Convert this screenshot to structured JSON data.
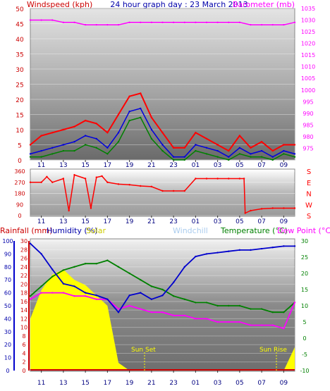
{
  "header": {
    "title": "24 hour graph day : 23 March 2013",
    "left_label": "Windspeed (kph)",
    "right_label": "Barometer (mb)"
  },
  "colors": {
    "wind": "#ff0000",
    "gust": "#ff0000",
    "avg": "#0000dd",
    "min": "#008000",
    "baro": "#ff00ff",
    "dir": "#ff0000",
    "dir_right": "#ff0000",
    "rain": "#cc0000",
    "humidity": "#0000cc",
    "humidity2": "#0000aa",
    "solar": "#ffff00",
    "windchill": "#aaccee",
    "temp": "#008000",
    "dew": "#ff00ff",
    "sun_text": "#ffff00"
  },
  "time_axis": {
    "labels": [
      "11",
      "13",
      "15",
      "17",
      "19",
      "21",
      "23",
      "01",
      "03",
      "05",
      "07",
      "09"
    ]
  },
  "chart_data": [
    {
      "type": "line",
      "id": "wind-barometer",
      "title": "24 hour graph day : 23 March 2013",
      "ylabel": "Windspeed (kph)",
      "y2label": "Barometer (mb)",
      "ylim": [
        0,
        50
      ],
      "y2lim": [
        970,
        1035
      ],
      "yticks": [
        "0",
        "5",
        "10",
        "15",
        "20",
        "25",
        "30",
        "35",
        "40",
        "45",
        "50"
      ],
      "y2ticks": [
        "975",
        "980",
        "985",
        "990",
        "995",
        "1000",
        "1005",
        "1010",
        "1015",
        "1020",
        "1025",
        "1030",
        "1035"
      ],
      "x": [
        10,
        11,
        12,
        13,
        14,
        15,
        16,
        17,
        18,
        19,
        20,
        21,
        22,
        23,
        24,
        25,
        26,
        27,
        28,
        29,
        30,
        31,
        32,
        33,
        34
      ],
      "series": [
        {
          "role": "gust",
          "values": [
            5,
            8,
            9,
            10,
            11,
            13,
            12,
            9,
            15,
            21,
            22,
            14,
            9,
            4,
            4,
            9,
            7,
            5,
            3,
            8,
            4,
            6,
            3,
            5,
            5
          ]
        },
        {
          "role": "avg",
          "values": [
            2,
            3,
            4,
            5,
            6,
            8,
            7,
            4,
            9,
            16,
            17,
            10,
            5,
            1,
            1,
            5,
            4,
            3,
            1,
            4,
            2,
            3,
            1,
            3,
            2
          ]
        },
        {
          "role": "min",
          "values": [
            1,
            1,
            2,
            3,
            3,
            5,
            4,
            2,
            6,
            13,
            14,
            7,
            3,
            0,
            0,
            3,
            2,
            1,
            0,
            2,
            1,
            1,
            0,
            2,
            1
          ]
        },
        {
          "role": "barometer",
          "values": [
            1030,
            1030,
            1030,
            1029,
            1029,
            1028,
            1028,
            1028,
            1028,
            1029,
            1029,
            1029,
            1029,
            1029,
            1029,
            1029,
            1029,
            1029,
            1029,
            1029,
            1028,
            1028,
            1028,
            1028,
            1029
          ]
        }
      ]
    },
    {
      "type": "line",
      "id": "wind-direction",
      "ylim": [
        0,
        360
      ],
      "yticks": [
        "0",
        "90",
        "180",
        "270",
        "360"
      ],
      "compass": [
        "S",
        "E",
        "N",
        "W",
        "S"
      ],
      "x": [
        10,
        11,
        11.5,
        12,
        13,
        13.5,
        14,
        15,
        15.5,
        16,
        16.5,
        17,
        18,
        19,
        20,
        21,
        22,
        23,
        24,
        25,
        26,
        27,
        28,
        29,
        29.4,
        29.5,
        30,
        31,
        32,
        33,
        34
      ],
      "values": [
        270,
        270,
        315,
        270,
        300,
        40,
        330,
        300,
        60,
        310,
        320,
        270,
        255,
        250,
        240,
        235,
        200,
        200,
        200,
        300,
        300,
        300,
        300,
        300,
        300,
        20,
        40,
        55,
        60,
        60,
        60
      ]
    },
    {
      "type": "line",
      "id": "rain-humidity-temperature",
      "labels": [
        "Rainfall (mm)",
        "Humidity (%)",
        "Solar",
        "Windchill",
        "Temperature (°C)",
        "Dew Point (°C)"
      ],
      "ylim_rain": [
        0,
        30
      ],
      "ylim_humidity": [
        0,
        100
      ],
      "ylim_temp": [
        -10,
        30
      ],
      "rain_ticks": [
        "0",
        "2",
        "4",
        "6",
        "8",
        "10",
        "12",
        "14",
        "16",
        "18",
        "20",
        "22",
        "24",
        "26",
        "28",
        "30"
      ],
      "humidity_ticks": [
        "0",
        "10",
        "20",
        "30",
        "40",
        "50",
        "60",
        "70",
        "80",
        "90",
        "100"
      ],
      "temp_ticks": [
        "-10",
        "-5",
        "0",
        "5",
        "10",
        "15",
        "20",
        "25",
        "30"
      ],
      "x": [
        10,
        11,
        12,
        13,
        14,
        15,
        16,
        17,
        18,
        19,
        20,
        21,
        22,
        23,
        24,
        25,
        26,
        27,
        28,
        29,
        30,
        31,
        32,
        33,
        34
      ],
      "series": [
        {
          "role": "humidity",
          "values": [
            98,
            90,
            78,
            67,
            65,
            60,
            58,
            55,
            45,
            58,
            60,
            55,
            58,
            68,
            80,
            88,
            90,
            91,
            92,
            93,
            93,
            94,
            95,
            96,
            96
          ]
        },
        {
          "role": "temperature",
          "values": [
            13,
            16,
            19,
            21,
            22,
            23,
            23,
            24,
            22,
            20,
            18,
            16,
            15,
            13,
            12,
            11,
            11,
            10,
            10,
            10,
            9,
            9,
            8,
            8,
            11
          ]
        },
        {
          "role": "dew_point",
          "values": [
            12,
            14,
            14,
            14,
            13,
            13,
            12,
            12,
            9,
            10,
            9,
            8,
            8,
            7,
            7,
            6,
            6,
            5,
            5,
            5,
            4,
            4,
            4,
            3,
            11
          ]
        },
        {
          "role": "solar",
          "values": [
            40,
            62,
            74,
            78,
            70,
            66,
            58,
            50,
            6,
            0,
            0,
            0,
            0,
            0,
            0,
            0,
            0,
            0,
            0,
            0,
            0,
            0,
            0,
            0,
            18
          ]
        }
      ],
      "annotations": [
        "Sun Set",
        "Sun Rise"
      ]
    }
  ]
}
